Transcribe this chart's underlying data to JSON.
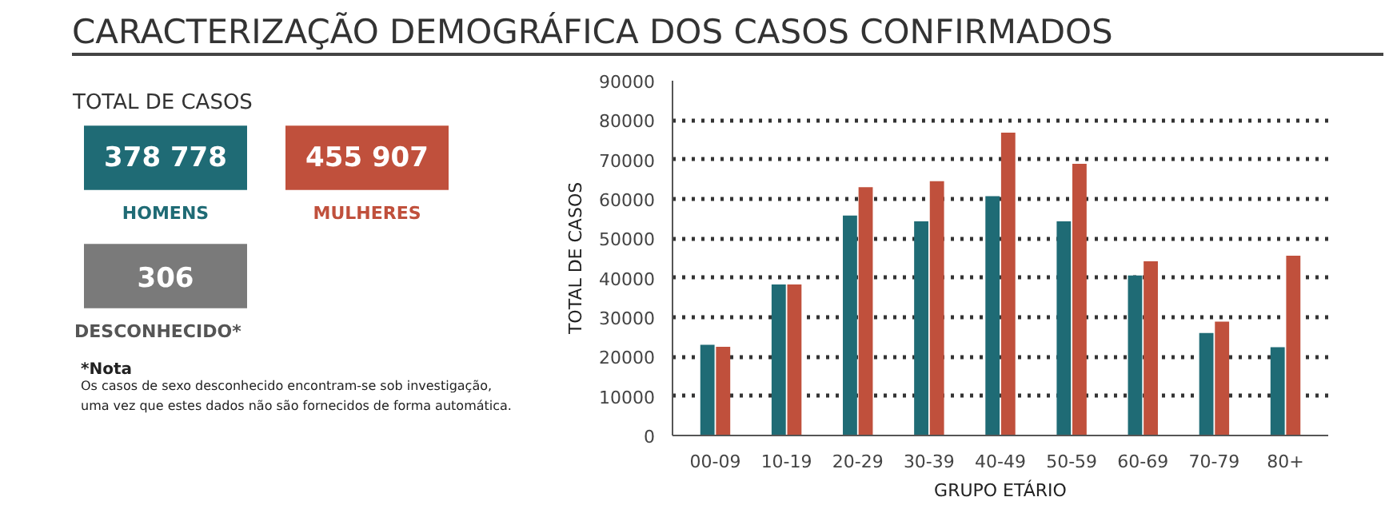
{
  "chart_data": [
    {
      "type": "other",
      "title": "CARACTERIZAÇÃO DEMOGRÁFICA DOS CASOS CONFIRMADOS",
      "subtitle": "TOTAL DE CASOS",
      "categories": [
        "HOMENS",
        "MULHERES",
        "DESCONHECIDO*"
      ],
      "value_labels": [
        "378 778",
        "455 907",
        "306"
      ],
      "colors": [
        "#1f6b75",
        "#c0503c",
        "#7a7a7a"
      ],
      "annotations": [
        "*Nota",
        "Os casos de sexo desconhecido encontram-se sob investigação,\numa vez que estes dados não são fornecidos de forma automática."
      ]
    },
    {
      "type": "bar",
      "xlabel": "GRUPO ETÁRIO",
      "ylabel": "TOTAL DE CASOS",
      "categories": [
        "00-09",
        "10-19",
        "20-29",
        "30-39",
        "40-49",
        "50-59",
        "60-69",
        "70-79",
        "80+"
      ],
      "series": [
        {
          "color": "#1f6b75",
          "values": [
            23000,
            38300,
            55800,
            54300,
            60700,
            54300,
            40600,
            26000,
            22400
          ]
        },
        {
          "color": "#c0503c",
          "values": [
            22500,
            38300,
            63000,
            64500,
            76800,
            68900,
            44200,
            28900,
            45600
          ]
        }
      ],
      "ylim": [
        0,
        90000
      ],
      "yticks": [
        0,
        10000,
        20000,
        30000,
        40000,
        50000,
        60000,
        70000,
        80000,
        90000
      ],
      "grid": "y"
    }
  ]
}
